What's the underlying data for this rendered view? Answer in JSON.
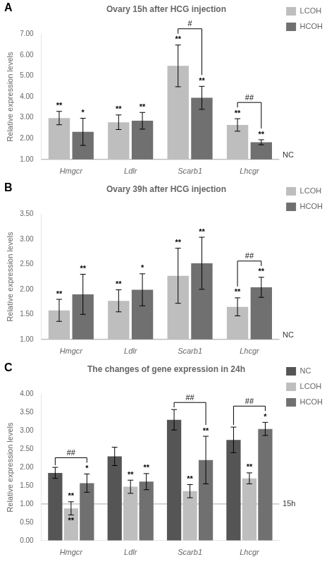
{
  "chart_data": [
    {
      "type": "bar",
      "panel_label": "A",
      "title": "Ovary 15h after HCG injection",
      "categories": [
        "Hmgcr",
        "Ldlr",
        "Scarb1",
        "Lhcgr"
      ],
      "series": [
        {
          "name": "LCOH",
          "color": "#bebebe",
          "values": [
            2.98,
            2.78,
            5.48,
            2.65
          ],
          "errors": [
            0.32,
            0.35,
            1.0,
            0.3
          ],
          "stars": [
            "**",
            "**",
            "**",
            "**"
          ]
        },
        {
          "name": "HCOH",
          "color": "#707070",
          "values": [
            2.32,
            2.85,
            3.95,
            1.82
          ],
          "errors": [
            0.65,
            0.4,
            0.55,
            0.12
          ],
          "stars": [
            "*",
            "**",
            "**",
            "**"
          ]
        }
      ],
      "ylim": [
        1.0,
        7.0
      ],
      "yticks": [
        {
          "value": 1,
          "label": "1.00"
        },
        {
          "value": 2,
          "label": "2.00"
        },
        {
          "value": 3,
          "label": "3.00"
        },
        {
          "value": 4,
          "label": "4.00"
        },
        {
          "value": 5,
          "label": "5.00"
        },
        {
          "value": 6,
          "label": "6.00"
        },
        {
          "value": 7,
          "label": "7.00"
        }
      ],
      "ylabel": "Relative expression levels",
      "reference": {
        "value": 1.0,
        "label": "NC"
      },
      "brackets": [
        {
          "category": "Scarb1",
          "from": "LCOH",
          "to": "HCOH",
          "text": "#"
        },
        {
          "category": "Lhcgr",
          "from": "LCOH",
          "to": "HCOH",
          "text": "##"
        }
      ],
      "grid": false,
      "legend": "right"
    },
    {
      "type": "bar",
      "panel_label": "B",
      "title": "Ovary 39h after HCG injection",
      "categories": [
        "Hmgcr",
        "Ldlr",
        "Scarb1",
        "Lhcgr"
      ],
      "series": [
        {
          "name": "LCOH",
          "color": "#bebebe",
          "values": [
            1.58,
            1.77,
            2.27,
            1.65
          ],
          "errors": [
            0.22,
            0.22,
            0.55,
            0.18
          ],
          "stars": [
            "**",
            "**",
            "**",
            "**"
          ]
        },
        {
          "name": "HCOH",
          "color": "#707070",
          "values": [
            1.9,
            1.99,
            2.52,
            2.04
          ],
          "errors": [
            0.4,
            0.32,
            0.52,
            0.2
          ],
          "stars": [
            "**",
            "*",
            "**",
            "**"
          ]
        }
      ],
      "ylim": [
        1.0,
        3.5
      ],
      "yticks": [
        {
          "value": 1,
          "label": "1.00"
        },
        {
          "value": 1.5,
          "label": "1.50"
        },
        {
          "value": 2,
          "label": "2.00"
        },
        {
          "value": 2.5,
          "label": "2.50"
        },
        {
          "value": 3,
          "label": "3.00"
        },
        {
          "value": 3.5,
          "label": "3.50"
        }
      ],
      "ylabel": "Relative expression levels",
      "reference": {
        "value": 1.0,
        "label": "NC"
      },
      "brackets": [
        {
          "category": "Lhcgr",
          "from": "LCOH",
          "to": "HCOH",
          "text": "##"
        }
      ],
      "grid": false,
      "legend": "right"
    },
    {
      "type": "bar",
      "panel_label": "C",
      "title": "The changes of gene expression in 24h",
      "categories": [
        "Hmgcr",
        "Ldlr",
        "Scarb1",
        "Lhcgr"
      ],
      "series": [
        {
          "name": "NC",
          "color": "#555555",
          "values": [
            1.85,
            2.3,
            3.3,
            2.75
          ],
          "errors": [
            0.15,
            0.25,
            0.28,
            0.35
          ]
        },
        {
          "name": "LCOH",
          "color": "#bebebe",
          "values": [
            0.88,
            1.47,
            1.35,
            1.7
          ],
          "errors": [
            0.18,
            0.18,
            0.18,
            0.15
          ],
          "stars": [
            "**",
            "**",
            "**",
            "**"
          ]
        },
        {
          "name": "HCOH",
          "color": "#707070",
          "values": [
            1.57,
            1.61,
            2.2,
            3.05
          ],
          "errors": [
            0.25,
            0.22,
            0.65,
            0.18
          ],
          "stars": [
            "*",
            "**",
            "**",
            "*"
          ]
        }
      ],
      "ylim": [
        0.0,
        4.0
      ],
      "yticks": [
        {
          "value": 0,
          "label": "0.00"
        },
        {
          "value": 0.5,
          "label": "0.50"
        },
        {
          "value": 1,
          "label": "1.00"
        },
        {
          "value": 1.5,
          "label": "1.50"
        },
        {
          "value": 2,
          "label": "2.00"
        },
        {
          "value": 2.5,
          "label": "2.50"
        },
        {
          "value": 3,
          "label": "3.00"
        },
        {
          "value": 3.5,
          "label": "3.50"
        },
        {
          "value": 4,
          "label": "4.00"
        }
      ],
      "ylabel": "Relative expression levels",
      "reference": {
        "value": 1.0,
        "label": "15h"
      },
      "annotations": [
        {
          "text": "**",
          "category": "Hmgcr",
          "series": "LCOH",
          "position": "below"
        }
      ],
      "brackets": [
        {
          "category": "Hmgcr",
          "from": "NC",
          "to": "HCOH",
          "text": "##"
        },
        {
          "category": "Scarb1",
          "from": "NC",
          "to": "HCOH",
          "text": "##"
        },
        {
          "category": "Lhcgr",
          "from": "NC",
          "to": "HCOH",
          "text": "##"
        }
      ],
      "grid": false,
      "legend": "right"
    }
  ]
}
